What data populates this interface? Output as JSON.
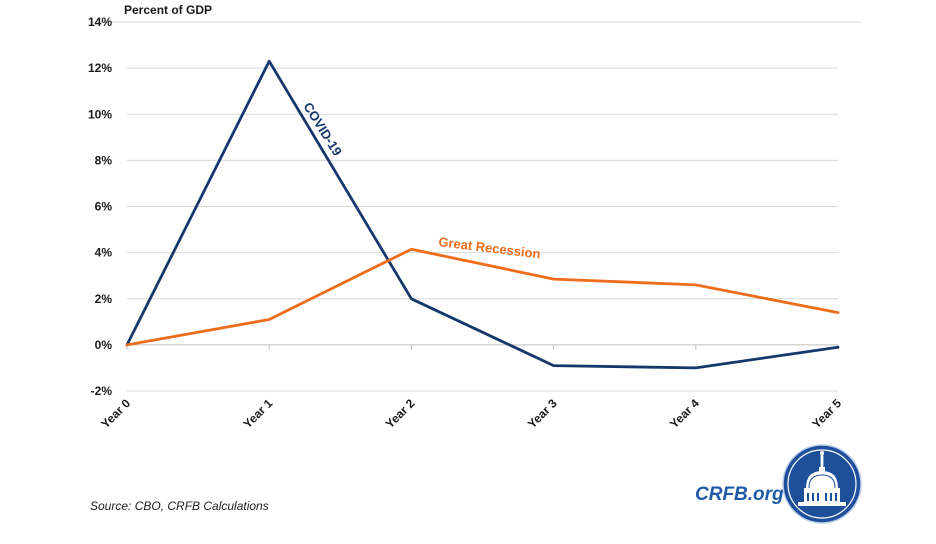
{
  "chart_data": {
    "type": "line",
    "ylabel": "Percent of GDP",
    "categories": [
      "Year 0",
      "Year 1",
      "Year 2",
      "Year 3",
      "Year 4",
      "Year 5"
    ],
    "ylim": [
      -2,
      14
    ],
    "yticks": [
      -2,
      0,
      2,
      4,
      6,
      8,
      10,
      12,
      14
    ],
    "ytick_labels": [
      "-2%",
      "0%",
      "2%",
      "4%",
      "6%",
      "8%",
      "10%",
      "12%",
      "14%"
    ],
    "grid": true,
    "legend": "none",
    "series": [
      {
        "name": "COVID-19",
        "color": "#14386b",
        "values": [
          0,
          12.3,
          2.0,
          -0.9,
          -1.0,
          -0.1
        ]
      },
      {
        "name": "Great Recession",
        "color": "#ed6d1c",
        "values": [
          0,
          1.1,
          4.15,
          2.85,
          2.6,
          1.4
        ]
      }
    ]
  },
  "footer": {
    "source": "Source: CBO, CRFB Calculations",
    "brand": "CRFB.org"
  },
  "colors": {
    "brand_blue": "#1f5aa8",
    "seal_blue": "#1e4f9a",
    "grid": "#d9d9d9"
  }
}
